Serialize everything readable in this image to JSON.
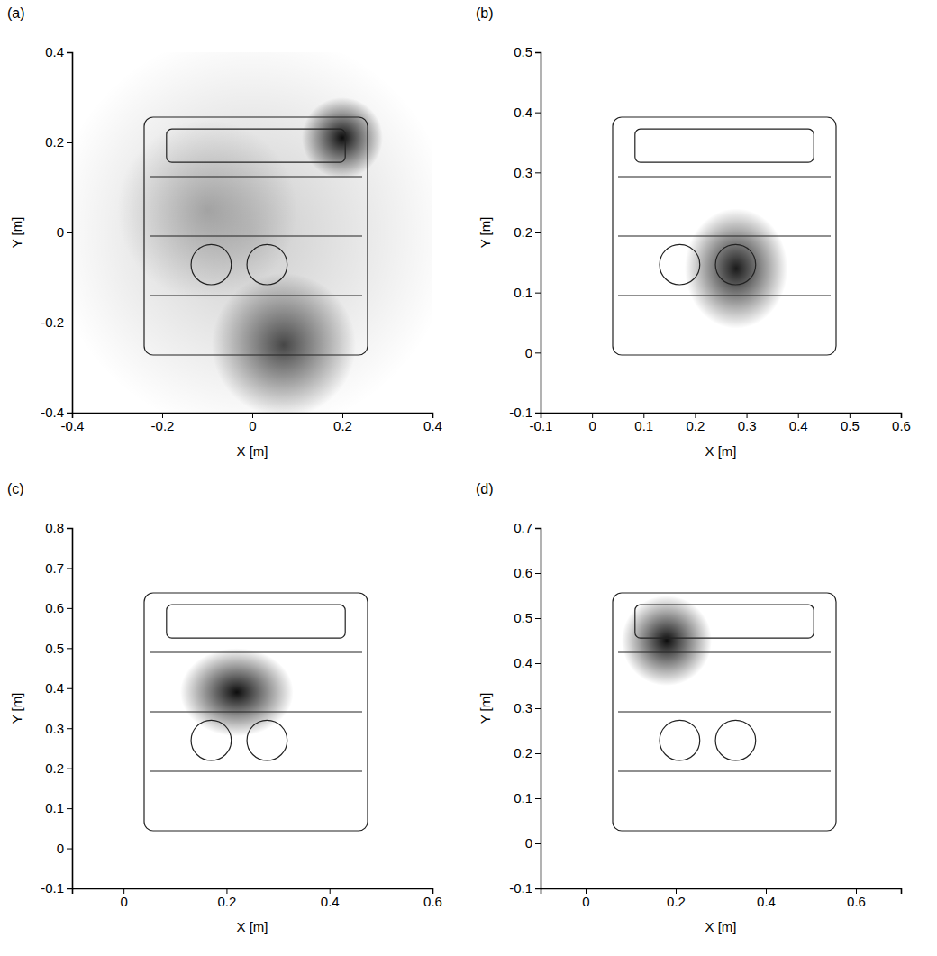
{
  "chart_data": [
    {
      "type": "source_map",
      "label": "(a)",
      "x_label": "X [m]",
      "y_label": "Y [m]",
      "xlim": [
        -0.4,
        0.4
      ],
      "xticks": [
        -0.4,
        -0.2,
        0,
        0.2,
        0.4
      ],
      "ylim": [
        -0.4,
        0.4
      ],
      "yticks": [
        -0.4,
        -0.2,
        0,
        0.2,
        0.4
      ],
      "sources": {
        "x": [
          0,
          0.2,
          0.07,
          -0.1
        ],
        "y": [
          0,
          0.21,
          -0.25,
          0.05
        ],
        "size": [
          0.45,
          0.09,
          0.16,
          0.2
        ],
        "level": [
          0.2,
          0.95,
          0.7,
          0.25
        ]
      }
    },
    {
      "type": "source_map",
      "label": "(b)",
      "x_label": "X [m]",
      "y_label": "Y [m]",
      "xlim": [
        -0.1,
        0.6
      ],
      "xticks": [
        -0.1,
        0,
        0.1,
        0.2,
        0.3,
        0.4,
        0.5,
        0.6
      ],
      "ylim": [
        -0.1,
        0.5
      ],
      "yticks": [
        -0.1,
        0,
        0.1,
        0.2,
        0.3,
        0.4,
        0.5
      ],
      "sources": {
        "x": [
          0.28
        ],
        "y": [
          0.14
        ],
        "size": [
          0.1
        ],
        "level": [
          0.9
        ]
      }
    },
    {
      "type": "source_map",
      "label": "(c)",
      "x_label": "X [m]",
      "y_label": "Y [m]",
      "xlim": [
        -0.1,
        0.6
      ],
      "xticks": [
        0,
        0.2,
        0.4,
        0.6
      ],
      "ylim": [
        -0.1,
        0.8
      ],
      "yticks": [
        -0.1,
        0,
        0.1,
        0.2,
        0.3,
        0.4,
        0.5,
        0.6,
        0.7,
        0.8
      ],
      "sources": {
        "x": [
          0.22
        ],
        "y": [
          0.39
        ],
        "size": [
          0.11
        ],
        "level": [
          0.95
        ]
      }
    },
    {
      "type": "source_map",
      "label": "(d)",
      "x_label": "X [m]",
      "y_label": "Y [m]",
      "xlim": [
        -0.1,
        0.7
      ],
      "xticks": [
        0,
        0.2,
        0.4,
        0.6
      ],
      "ylim": [
        -0.1,
        0.7
      ],
      "yticks": [
        -0.1,
        0,
        0.1,
        0.2,
        0.3,
        0.4,
        0.5,
        0.6,
        0.7
      ],
      "sources": {
        "x": [
          0.18
        ],
        "y": [
          0.45
        ],
        "size": [
          0.1
        ],
        "level": [
          0.95
        ]
      }
    }
  ]
}
